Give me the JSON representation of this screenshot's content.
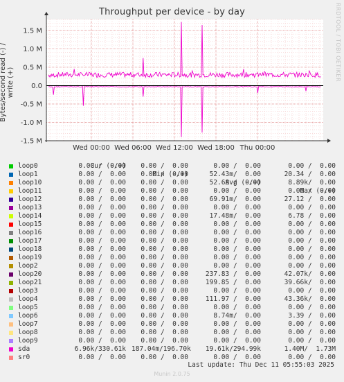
{
  "title": "Throughput per device - by day",
  "side_note": "RRDTOOL / TOBI OETIKER",
  "ylabel": "Bytes/second read (-) / write (+)",
  "legend_header": {
    "cur": "Cur (-/+)",
    "min": "Min (-/+)",
    "avg": "Avg (-/+)",
    "max": "Max (-/+)"
  },
  "legend": [
    {
      "name": "loop0",
      "color": "#00cc00",
      "cur": "0.00 /  0.00",
      "min": "0.00 /  0.00",
      "avg": "0.00 /  0.00",
      "max": "0.00 /  0.00"
    },
    {
      "name": "loop1",
      "color": "#0066b3",
      "cur": "0.00 /  0.00",
      "min": "0.00 /  0.00",
      "avg": "52.43m/  0.00",
      "max": "20.34 /  0.00"
    },
    {
      "name": "loop10",
      "color": "#ff8000",
      "cur": "0.00 /  0.00",
      "min": "0.00 /  0.00",
      "avg": "52.68 /  0.00",
      "max": "8.89k/  0.00"
    },
    {
      "name": "loop11",
      "color": "#ffcc00",
      "cur": "0.00 /  0.00",
      "min": "0.00 /  0.00",
      "avg": "0.00 /  0.00",
      "max": "0.00 /  0.00"
    },
    {
      "name": "loop12",
      "color": "#330099",
      "cur": "0.00 /  0.00",
      "min": "0.00 /  0.00",
      "avg": "69.91m/  0.00",
      "max": "27.12 /  0.00"
    },
    {
      "name": "loop13",
      "color": "#990099",
      "cur": "0.00 /  0.00",
      "min": "0.00 /  0.00",
      "avg": "0.00 /  0.00",
      "max": "0.00 /  0.00"
    },
    {
      "name": "loop14",
      "color": "#ccff00",
      "cur": "0.00 /  0.00",
      "min": "0.00 /  0.00",
      "avg": "17.48m/  0.00",
      "max": "6.78 /  0.00"
    },
    {
      "name": "loop15",
      "color": "#ff0000",
      "cur": "0.00 /  0.00",
      "min": "0.00 /  0.00",
      "avg": "0.00 /  0.00",
      "max": "0.00 /  0.00"
    },
    {
      "name": "loop16",
      "color": "#808080",
      "cur": "0.00 /  0.00",
      "min": "0.00 /  0.00",
      "avg": "0.00 /  0.00",
      "max": "0.00 /  0.00"
    },
    {
      "name": "loop17",
      "color": "#008f00",
      "cur": "0.00 /  0.00",
      "min": "0.00 /  0.00",
      "avg": "0.00 /  0.00",
      "max": "0.00 /  0.00"
    },
    {
      "name": "loop18",
      "color": "#00487d",
      "cur": "0.00 /  0.00",
      "min": "0.00 /  0.00",
      "avg": "0.00 /  0.00",
      "max": "0.00 /  0.00"
    },
    {
      "name": "loop19",
      "color": "#b35a00",
      "cur": "0.00 /  0.00",
      "min": "0.00 /  0.00",
      "avg": "0.00 /  0.00",
      "max": "0.00 /  0.00"
    },
    {
      "name": "loop2",
      "color": "#b38f00",
      "cur": "0.00 /  0.00",
      "min": "0.00 /  0.00",
      "avg": "0.00 /  0.00",
      "max": "0.00 /  0.00"
    },
    {
      "name": "loop20",
      "color": "#6b006b",
      "cur": "0.00 /  0.00",
      "min": "0.00 /  0.00",
      "avg": "237.83 /  0.00",
      "max": "42.07k/  0.00"
    },
    {
      "name": "loop21",
      "color": "#8fb300",
      "cur": "0.00 /  0.00",
      "min": "0.00 /  0.00",
      "avg": "199.85 /  0.00",
      "max": "39.66k/  0.00"
    },
    {
      "name": "loop3",
      "color": "#b30000",
      "cur": "0.00 /  0.00",
      "min": "0.00 /  0.00",
      "avg": "0.00 /  0.00",
      "max": "0.00 /  0.00"
    },
    {
      "name": "loop4",
      "color": "#bebebe",
      "cur": "0.00 /  0.00",
      "min": "0.00 /  0.00",
      "avg": "111.97 /  0.00",
      "max": "43.36k/  0.00"
    },
    {
      "name": "loop5",
      "color": "#80ff80",
      "cur": "0.00 /  0.00",
      "min": "0.00 /  0.00",
      "avg": "0.00 /  0.00",
      "max": "0.00 /  0.00"
    },
    {
      "name": "loop6",
      "color": "#80c9ff",
      "cur": "0.00 /  0.00",
      "min": "0.00 /  0.00",
      "avg": "8.74m/  0.00",
      "max": "3.39 /  0.00"
    },
    {
      "name": "loop7",
      "color": "#ffc080",
      "cur": "0.00 /  0.00",
      "min": "0.00 /  0.00",
      "avg": "0.00 /  0.00",
      "max": "0.00 /  0.00"
    },
    {
      "name": "loop8",
      "color": "#ffe680",
      "cur": "0.00 /  0.00",
      "min": "0.00 /  0.00",
      "avg": "0.00 /  0.00",
      "max": "0.00 /  0.00"
    },
    {
      "name": "loop9",
      "color": "#aa80ff",
      "cur": "0.00 /  0.00",
      "min": "0.00 /  0.00",
      "avg": "0.00 /  0.00",
      "max": "0.00 /  0.00"
    },
    {
      "name": "sda",
      "color": "#ee00cc",
      "cur": "6.96k/330.61k",
      "min": "187.04m/196.70k",
      "avg": "19.61k/294.99k",
      "max": "1.40M/  1.73M"
    },
    {
      "name": "sr0",
      "color": "#ff8080",
      "cur": "0.00 /  0.00",
      "min": "0.00 /  0.00",
      "avg": "0.00 /  0.00",
      "max": "0.00 /  0.00"
    }
  ],
  "last_update": "Last update: Thu Dec 11 05:55:03 2025",
  "footer": "Munin 2.0.75",
  "chart_data": {
    "type": "line",
    "title": "Throughput per device - by day",
    "ylabel": "Bytes/second read (-) / write (+)",
    "ylim": [
      -1500000,
      1800000
    ],
    "y_ticks": [
      1500000,
      1000000,
      500000,
      0,
      -500000,
      -1000000,
      -1500000
    ],
    "y_tick_labels": [
      "1.5 M",
      "1.0 M",
      "0.5 M",
      "0.0",
      "-0.5 M",
      "-1.0 M",
      "-1.5 M"
    ],
    "x_range": [
      -6.5,
      33.5
    ],
    "x_ticks": [
      0,
      6,
      12,
      18,
      24
    ],
    "x_tick_labels": [
      "Wed 00:00",
      "Wed 06:00",
      "Wed 12:00",
      "Wed 18:00",
      "Thu 00:00"
    ],
    "grid": true,
    "series": [
      {
        "name": "sda",
        "color": "#ee00cc",
        "write_baseline": 295000,
        "read_baseline": -20000,
        "write_spikes": [
          [
            -2.5,
            450000
          ],
          [
            7.5,
            750000
          ],
          [
            13.0,
            1730000
          ],
          [
            14.5,
            400000
          ],
          [
            16.0,
            1650000
          ],
          [
            22.0,
            450000
          ],
          [
            25.0,
            380000
          ],
          [
            31.5,
            400000
          ]
        ],
        "read_spikes": [
          [
            -5.5,
            -250000
          ],
          [
            -1.2,
            -550000
          ],
          [
            7.5,
            -300000
          ],
          [
            13.0,
            -1400000
          ],
          [
            16.0,
            -1280000
          ],
          [
            24.0,
            -200000
          ],
          [
            31.0,
            -150000
          ]
        ]
      }
    ]
  }
}
